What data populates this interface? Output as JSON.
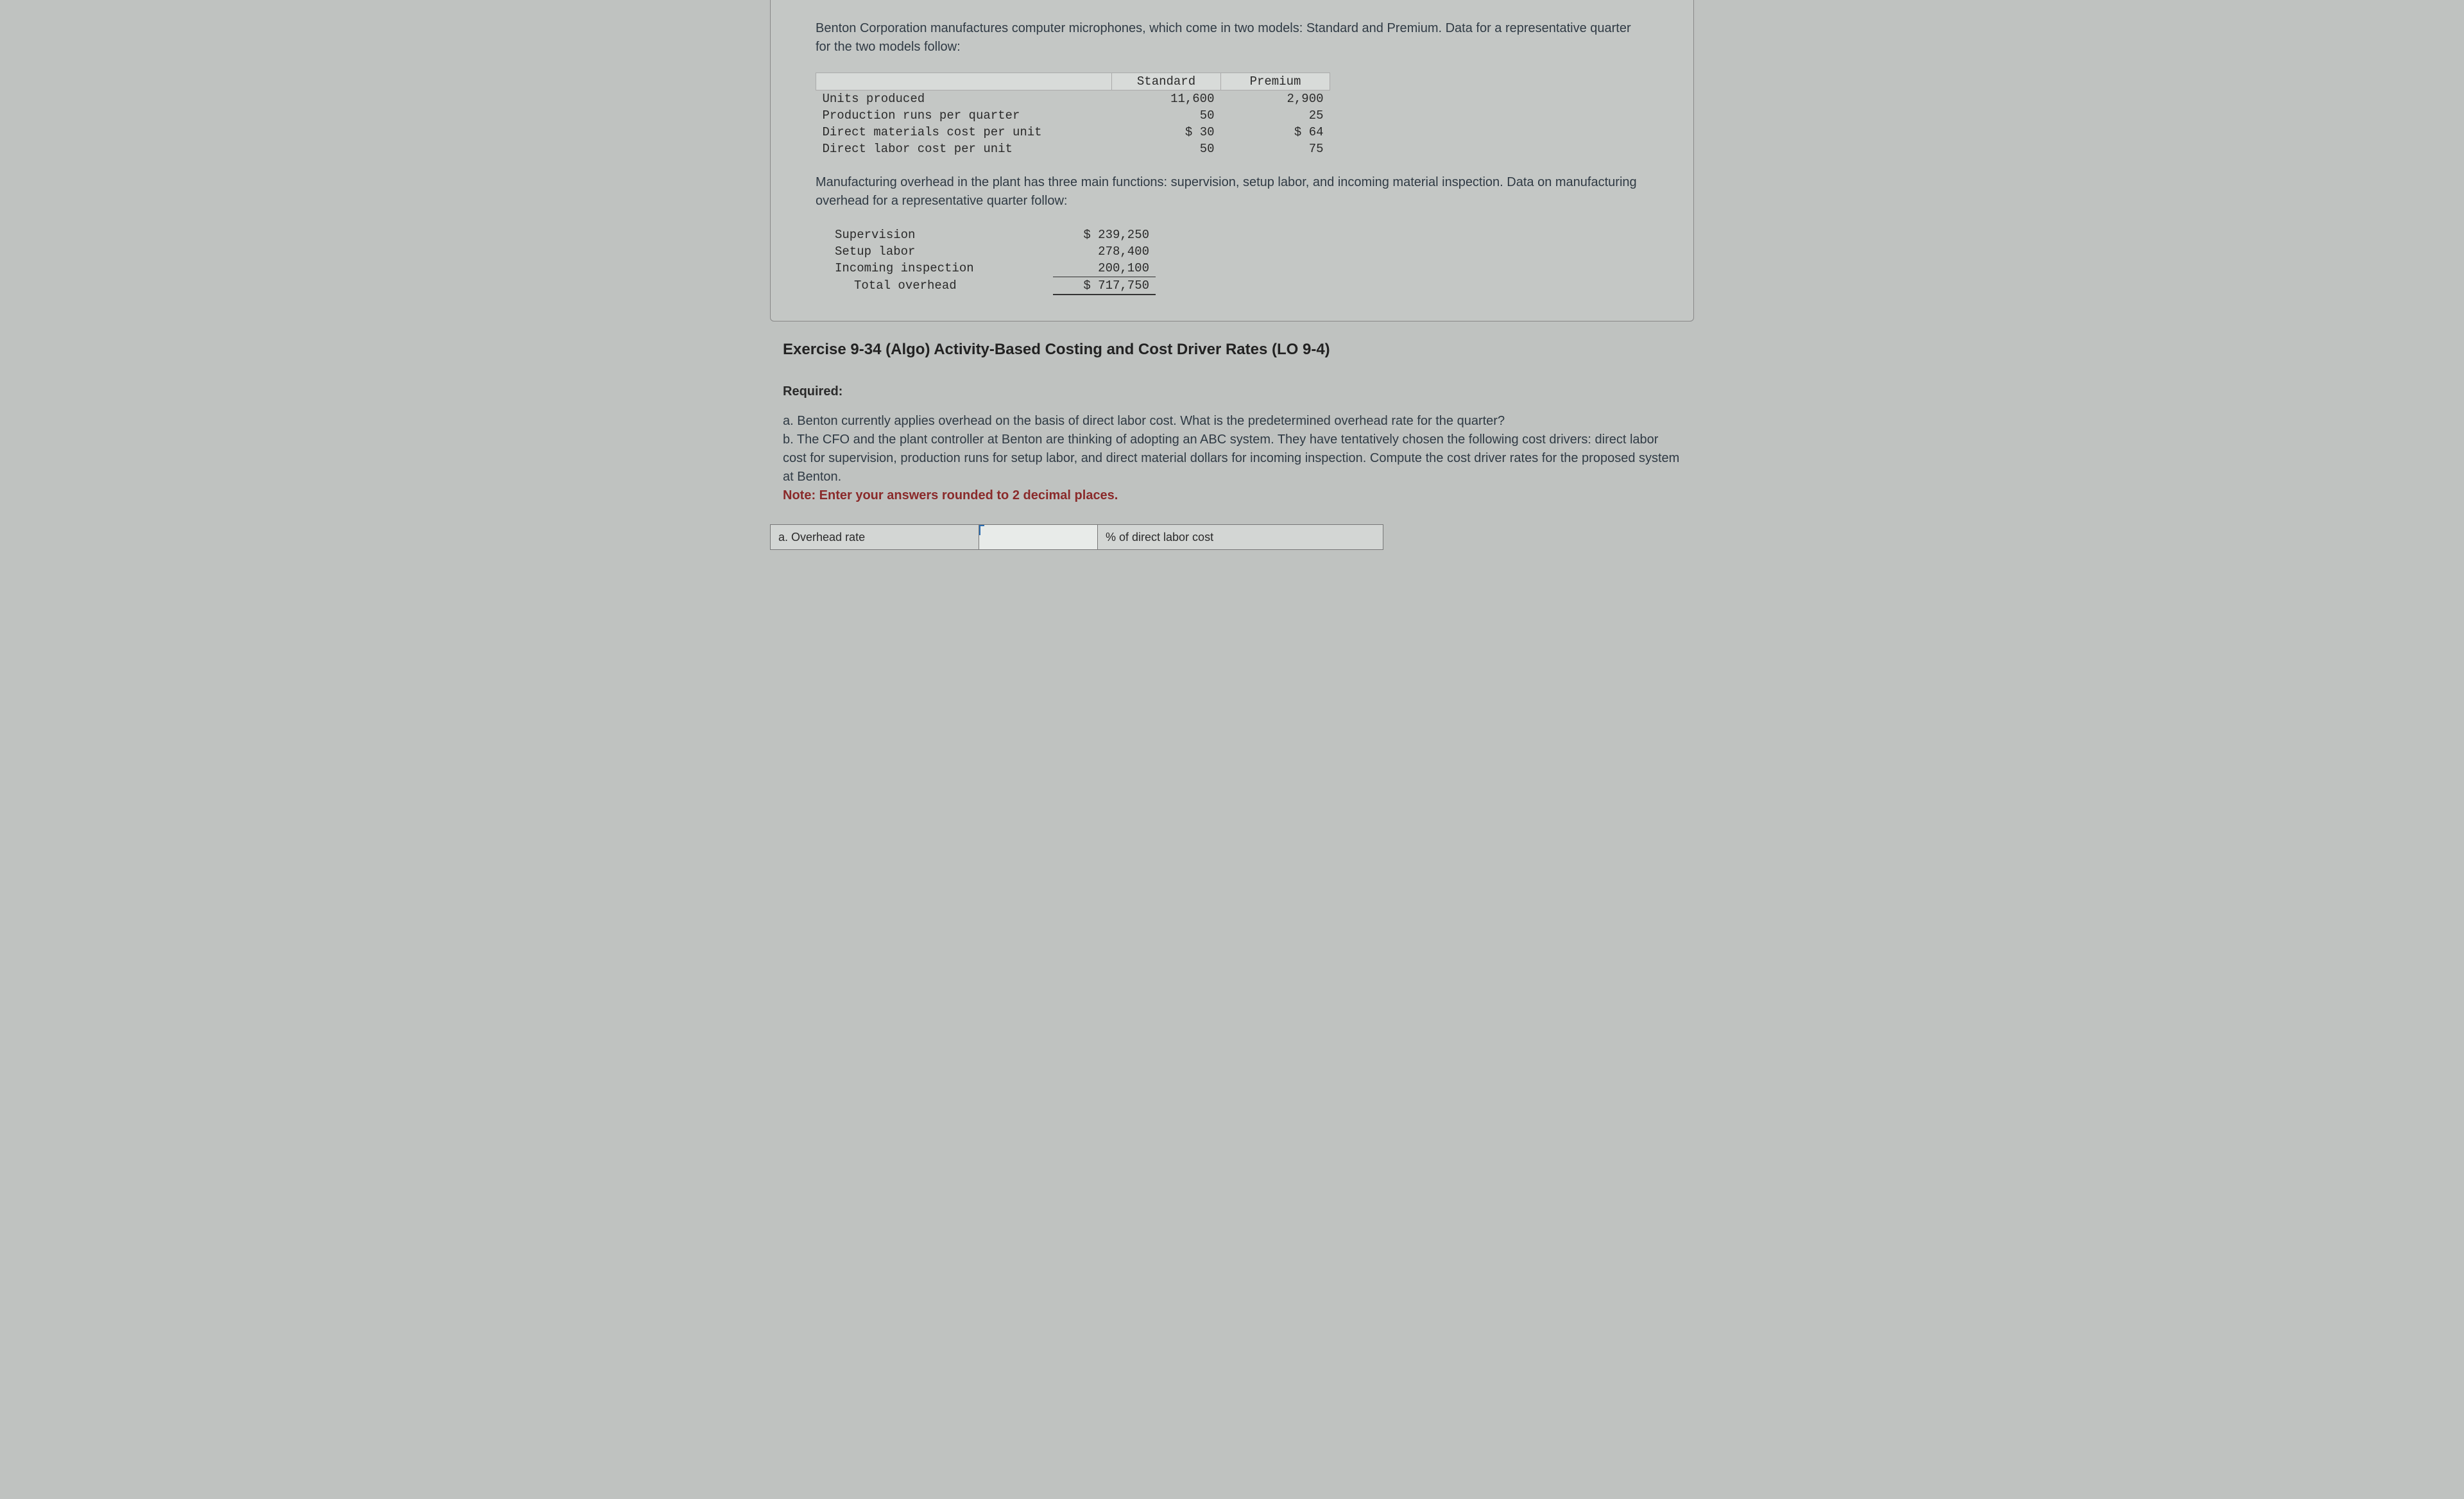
{
  "intro": "Benton Corporation manufactures computer microphones, which come in two models: Standard and Premium. Data for a representative quarter for the two models follow:",
  "table1": {
    "columns": [
      "Standard",
      "Premium"
    ],
    "rows": [
      {
        "label": "Units produced",
        "standard": "11,600",
        "premium": "2,900"
      },
      {
        "label": "Production runs per quarter",
        "standard": "50",
        "premium": "25"
      },
      {
        "label": "Direct materials cost per unit",
        "standard": "$ 30",
        "premium": "$ 64"
      },
      {
        "label": "Direct labor cost per unit",
        "standard": "50",
        "premium": "75"
      }
    ],
    "header_bg": "#d8dbd9",
    "font": "Courier New"
  },
  "midtext": "Manufacturing overhead in the plant has three main functions: supervision, setup labor, and incoming material inspection. Data on manufacturing overhead for a representative quarter follow:",
  "table2": {
    "rows": [
      {
        "label": "Supervision",
        "amount": "$ 239,250"
      },
      {
        "label": "Setup labor",
        "amount": "278,400"
      },
      {
        "label": "Incoming inspection",
        "amount": "200,100"
      }
    ],
    "total_label": "Total overhead",
    "total_amount": "$ 717,750"
  },
  "exercise_title": "Exercise 9-34 (Algo) Activity-Based Costing and Cost Driver Rates (LO 9-4)",
  "required_label": "Required:",
  "requirements": {
    "a": "a. Benton currently applies overhead on the basis of direct labor cost. What is the predetermined overhead rate for the quarter?",
    "b": "b. The CFO and the plant controller at Benton are thinking of adopting an ABC system. They have tentatively chosen the following cost drivers: direct labor cost for supervision, production runs for setup labor, and direct material dollars for incoming inspection. Compute the cost driver rates for the proposed system at Benton.",
    "note": "Note: Enter your answers rounded to 2 decimal places."
  },
  "answer": {
    "row_a_label": "a. Overhead rate",
    "row_a_unit": "% of direct labor cost"
  },
  "colors": {
    "page_bg": "#bfc2c0",
    "box_bg": "#c4c7c5",
    "text": "#2f3a44",
    "note_color": "#8a2a2a"
  }
}
